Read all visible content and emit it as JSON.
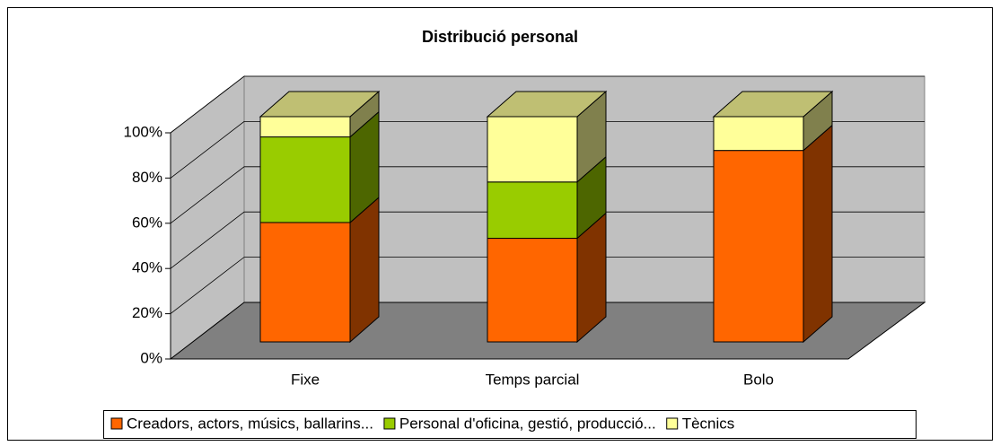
{
  "chart_data": {
    "type": "bar",
    "stacked": true,
    "title": "Distribució personal",
    "categories": [
      "Fixe",
      "Temps parcial",
      "Bolo"
    ],
    "series": [
      {
        "name": "Creadors, actors, músics, ballarins...",
        "color": "#ff6600",
        "values": [
          53,
          46,
          85
        ]
      },
      {
        "name": "Personal d'oficina, gestió, producció...",
        "color": "#99cc00",
        "values": [
          38,
          25,
          0
        ]
      },
      {
        "name": "Tècnics",
        "color": "#ffff99",
        "values": [
          9,
          29,
          15
        ]
      }
    ],
    "ylim": [
      0,
      100
    ],
    "yticks": [
      {
        "value": 0,
        "label": "0%"
      },
      {
        "value": 20,
        "label": "20%"
      },
      {
        "value": 40,
        "label": "40%"
      },
      {
        "value": 60,
        "label": "60%"
      },
      {
        "value": 80,
        "label": "80%"
      },
      {
        "value": 100,
        "label": "100%"
      }
    ],
    "grid": true,
    "legend": "bottom"
  }
}
